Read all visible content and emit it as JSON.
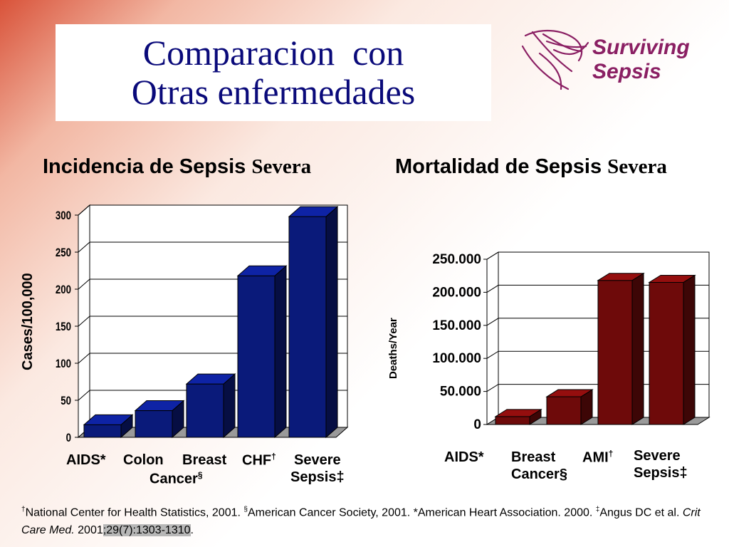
{
  "title": {
    "line1": "Comparacion  con",
    "line2": "Otras enfermedades"
  },
  "logo": {
    "line1": "Surviving",
    "line2": "Sepsis"
  },
  "headings": {
    "left_main": "Incidencia de Sepsis ",
    "left_serif": "Severa",
    "right_main": "Mortalidad de Sepsis ",
    "right_serif": "Severa"
  },
  "colors": {
    "blue_bar": "#0a1a7a",
    "red_bar": "#6e0a0a",
    "title": "#0a0a7a",
    "logo": "#8a1f63"
  },
  "chart_data": [
    {
      "type": "bar",
      "title": "",
      "ylabel": "Cases/100,000",
      "xlabel": "",
      "ylim": [
        0,
        300
      ],
      "yticks": [
        "0",
        "50",
        "100",
        "150",
        "200",
        "250",
        "300"
      ],
      "grid": true,
      "categories": [
        {
          "main": "AIDS*",
          "sup": "",
          "line2": ""
        },
        {
          "main": "Colon",
          "sup": "",
          "line2": ""
        },
        {
          "main": "Breast",
          "sup": "",
          "line2": ""
        },
        {
          "main": "CHF",
          "sup": "†",
          "line2": ""
        },
        {
          "main": "Severe",
          "sup": "",
          "line2": "Sepsis‡"
        }
      ],
      "shared_sublabel": {
        "text": "Cancer",
        "sup": "§"
      },
      "values": [
        17,
        36,
        72,
        218,
        298
      ]
    },
    {
      "type": "bar",
      "title": "",
      "ylabel": "Deaths/Year",
      "xlabel": "",
      "ylim": [
        0,
        250000
      ],
      "yticks": [
        "0",
        "50.000",
        "100.000",
        "150.000",
        "200.000",
        "250.000"
      ],
      "grid": true,
      "categories": [
        {
          "main": "AIDS*",
          "sup": "",
          "line2": ""
        },
        {
          "main": "Breast",
          "sup": "",
          "line2": "Cancer§"
        },
        {
          "main": "AMI",
          "sup": "†",
          "line2": ""
        },
        {
          "main": "Severe",
          "sup": "",
          "line2": "Sepsis‡"
        }
      ],
      "values": [
        12000,
        42000,
        218000,
        215000
      ]
    }
  ],
  "footnote": {
    "s1": "National Center for Health Statistics, 2001. ",
    "s2": "American Cancer Society, 2001. *American Heart Association. 2000. ",
    "s3": "Angus DC et al. ",
    "journal": "Crit Care Med.",
    "year": " 2001",
    "ref": ";29(7):1303-1310",
    "end": "."
  }
}
